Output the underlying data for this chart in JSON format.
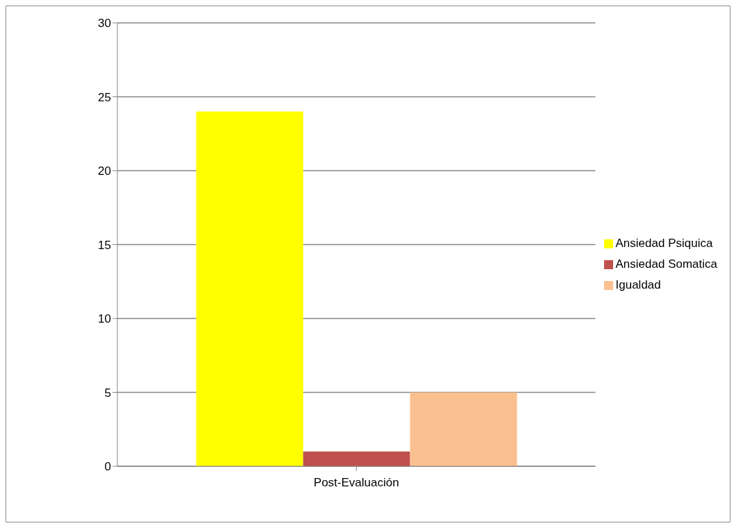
{
  "chart_data": {
    "type": "bar",
    "categories": [
      "Post-Evaluación"
    ],
    "series": [
      {
        "name": "Ansiedad Psiquica",
        "color": "#ffff00",
        "values": [
          24
        ]
      },
      {
        "name": "Ansiedad Somatica",
        "color": "#c0504d",
        "values": [
          1
        ]
      },
      {
        "name": "Igualdad",
        "color": "#fac090",
        "values": [
          5
        ]
      }
    ],
    "ylim": [
      0,
      30
    ],
    "yticks": [
      0,
      5,
      10,
      15,
      20,
      25,
      30
    ],
    "grid": "y",
    "legend": "right"
  }
}
